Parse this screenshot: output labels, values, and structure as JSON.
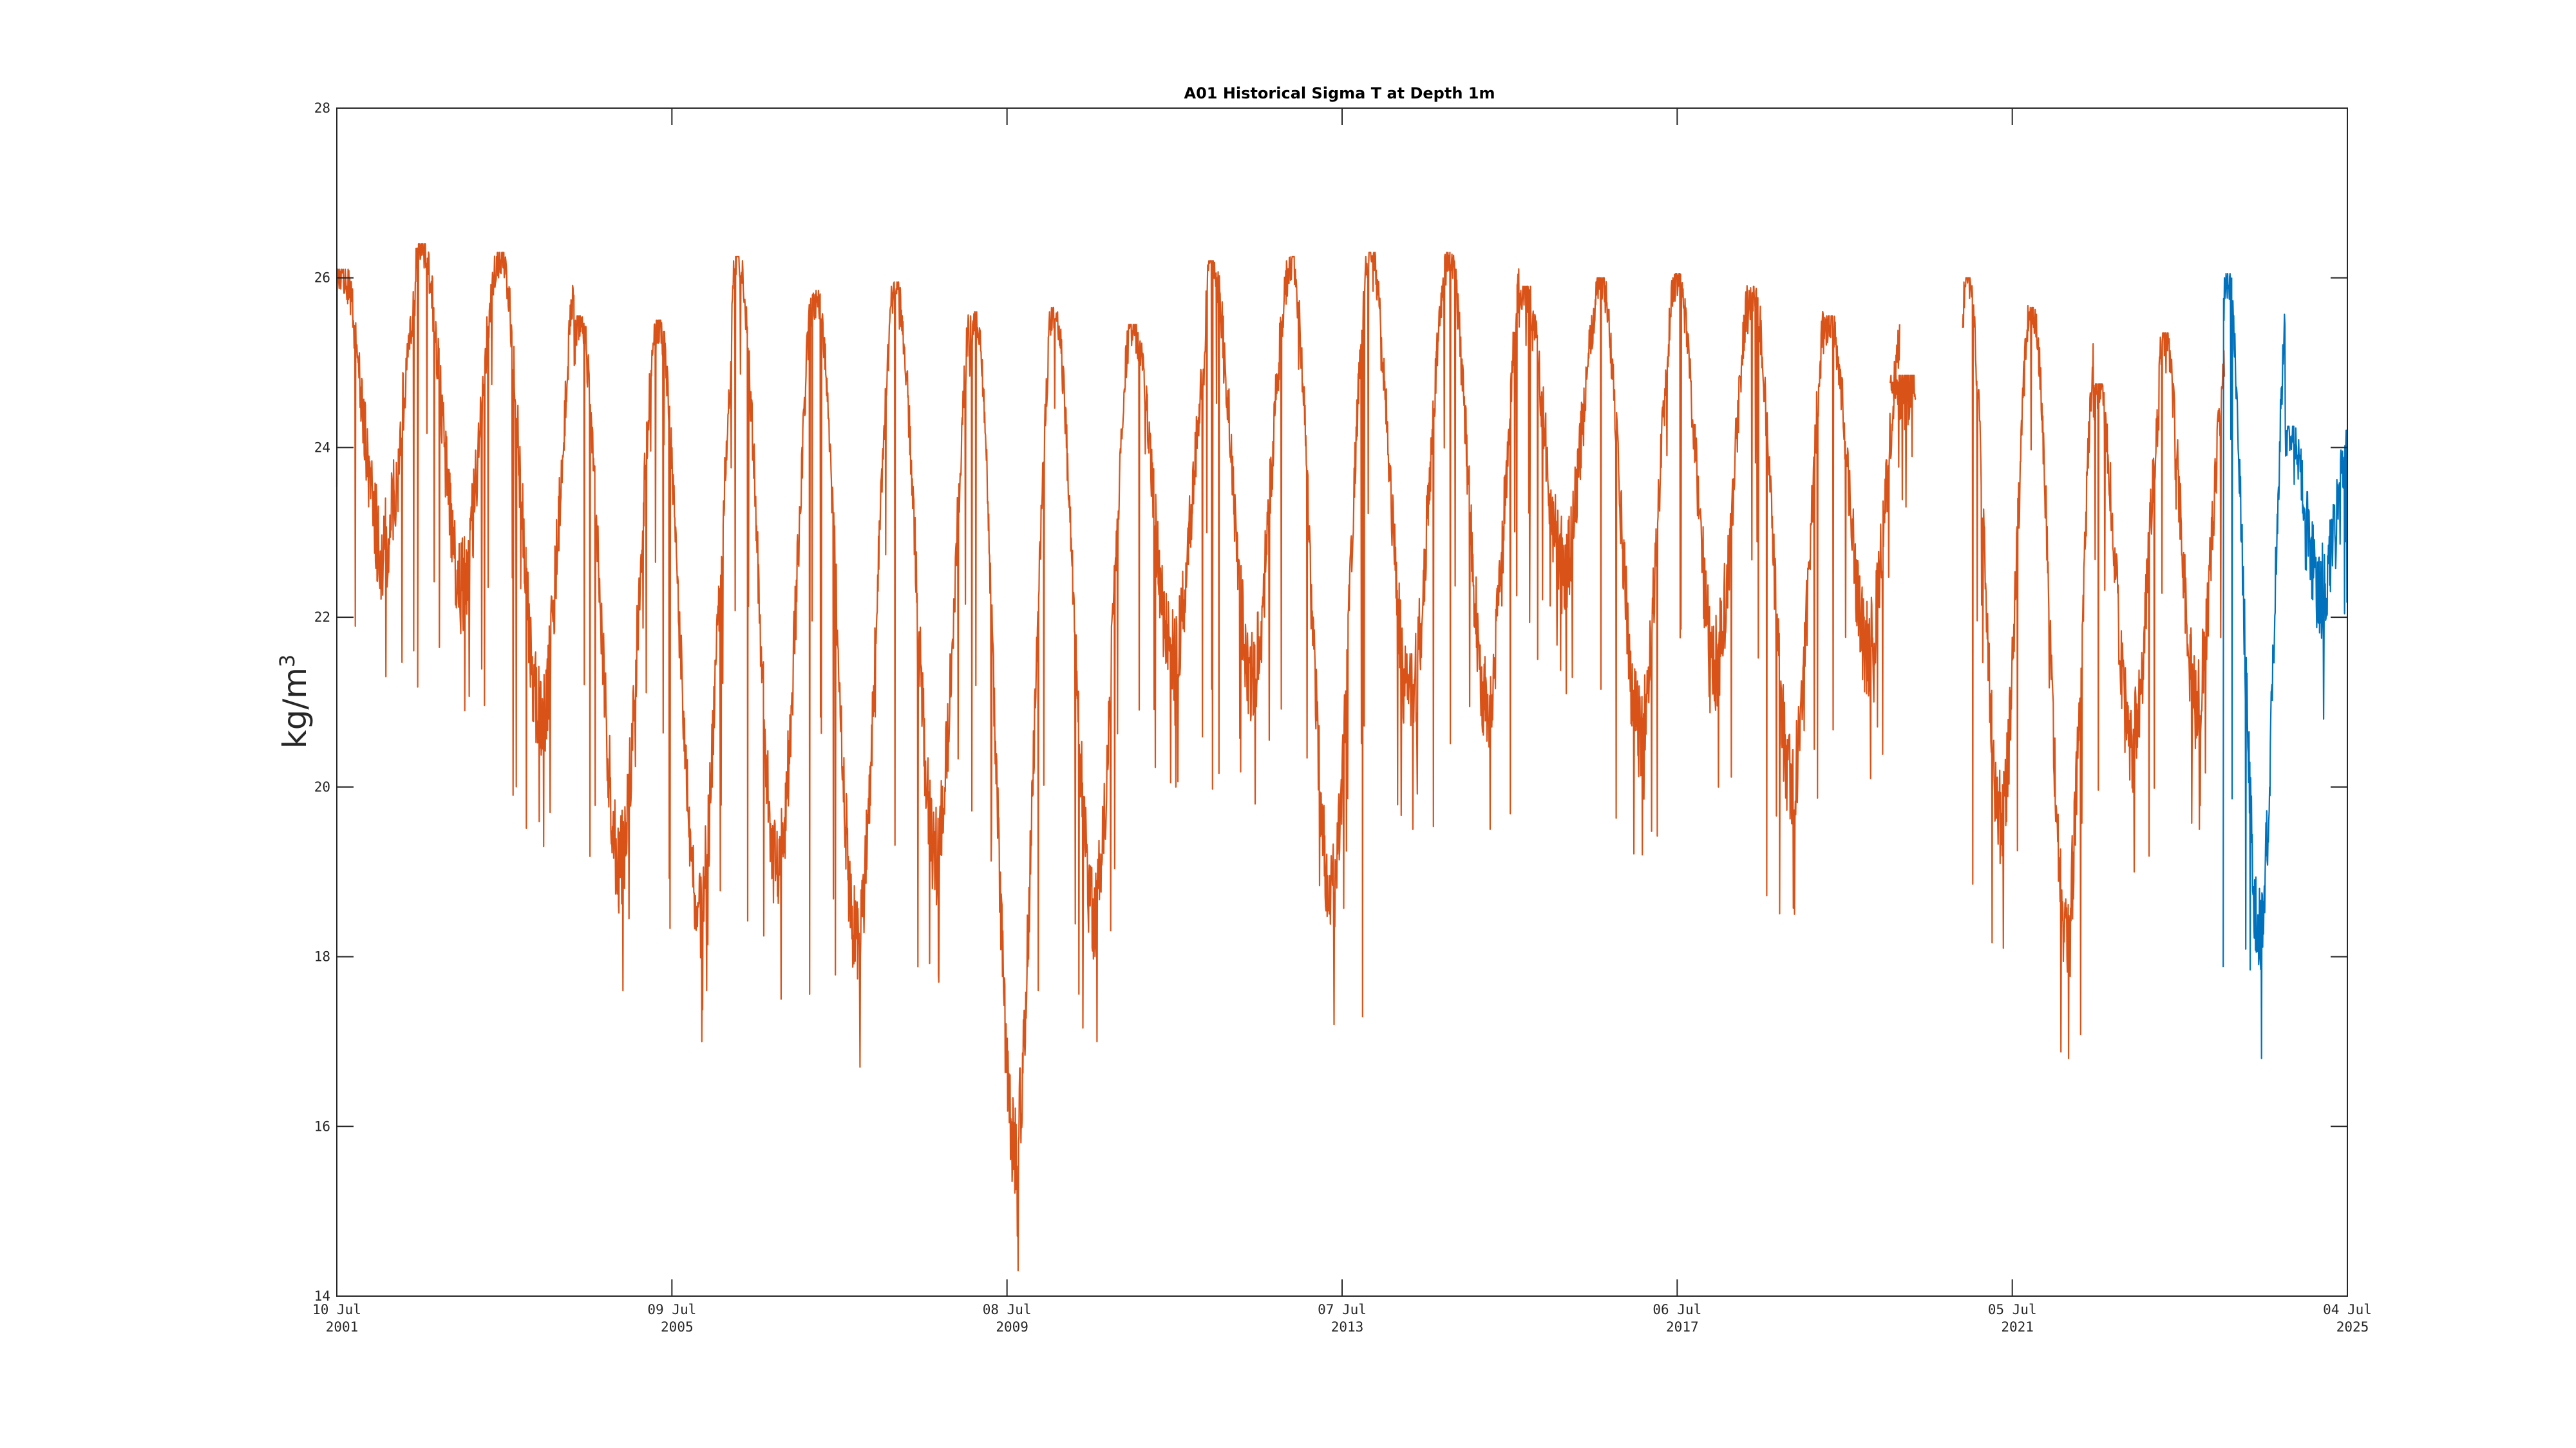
{
  "chart_data": {
    "type": "line",
    "title": "A01 Historical Sigma T at Depth 1m",
    "ylabel": "kg/m",
    "ylabel_superscript": "3",
    "xlabel": "",
    "ylim": [
      14,
      28
    ],
    "xlim": [
      "2001-07-10",
      "2025-07-04"
    ],
    "grid": false,
    "yticks": [
      14,
      16,
      18,
      20,
      22,
      24,
      26,
      28
    ],
    "xticks": [
      {
        "date": "2001-07-10",
        "line1": "10 Jul",
        "line2": "2001"
      },
      {
        "date": "2005-07-09",
        "line1": "09 Jul",
        "line2": "2005"
      },
      {
        "date": "2009-07-08",
        "line1": "08 Jul",
        "line2": "2009"
      },
      {
        "date": "2013-07-07",
        "line1": "07 Jul",
        "line2": "2013"
      },
      {
        "date": "2017-07-06",
        "line1": "06 Jul",
        "line2": "2017"
      },
      {
        "date": "2021-07-05",
        "line1": "05 Jul",
        "line2": "2021"
      },
      {
        "date": "2025-07-04",
        "line1": "04 Jul",
        "line2": "2025"
      }
    ],
    "colors": {
      "historical": "#d95319",
      "recent": "#0072bd",
      "axis": "#262626"
    },
    "series": [
      {
        "key": "historical",
        "segments": [
          {
            "start": "2001-07-10",
            "end": "2014-09-20",
            "highs": [
              26.05,
              26.35,
              26.25,
              25.5,
              25.45,
              26.2,
              25.8,
              25.9,
              25.55,
              25.6,
              25.4,
              26.15,
              26.2,
              26.25
            ],
            "lows": [
              21.3,
              20.9,
              19.3,
              17.6,
              17.0,
              17.5,
              16.7,
              17.7,
              14.3,
              17.0,
              20.0,
              19.8,
              17.2,
              19.5
            ]
          },
          {
            "start": "2014-09-20",
            "end": "2020-03-01",
            "highs": [
              26.25,
              25.85,
              25.95,
              26.0,
              25.85,
              25.5
            ],
            "lows": [
              19.5,
              21.1,
              19.2,
              20.0,
              18.5,
              20.1
            ]
          },
          {
            "start": "2020-01-20",
            "end": "2020-05-10",
            "highs": [
              24.8
            ],
            "lows": [
              23.3
            ]
          },
          {
            "start": "2020-12-01",
            "end": "2024-01-15",
            "highs": [
              25.95,
              25.6,
              24.7,
              25.3
            ],
            "lows": [
              18.1,
              16.8,
              19.0,
              19.5
            ]
          }
        ]
      },
      {
        "key": "recent",
        "segments": [
          {
            "start": "2024-01-10",
            "end": "2025-07-04",
            "highs": [
              26.0,
              24.2
            ],
            "lows": [
              16.8,
              20.8
            ]
          }
        ]
      }
    ]
  }
}
